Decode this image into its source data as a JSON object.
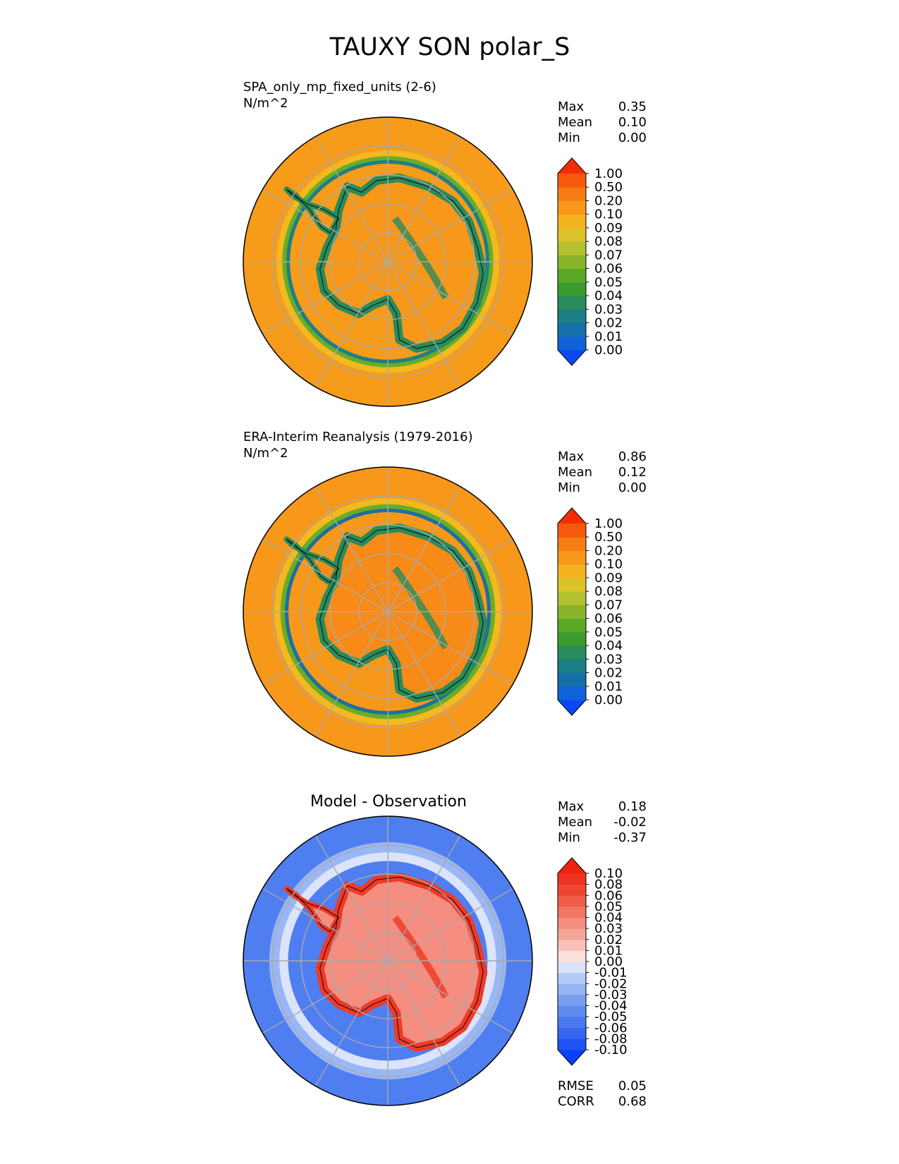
{
  "figure_title": "TAUXY SON polar_S",
  "chart_data": [
    {
      "type": "heatmap",
      "projection": "south-polar-stereographic",
      "title": "SPA_only_mp_fixed_units (2-6)",
      "units": "N/m^2",
      "stats": [
        {
          "label": "Max",
          "value": "0.35"
        },
        {
          "label": "Mean",
          "value": "0.10"
        },
        {
          "label": "Min",
          "value": "0.00"
        }
      ],
      "colorbar": {
        "levels": [
          "0.00",
          "0.01",
          "0.02",
          "0.03",
          "0.04",
          "0.05",
          "0.06",
          "0.07",
          "0.08",
          "0.09",
          "0.10",
          "0.20",
          "0.50",
          "1.00"
        ],
        "colors": [
          "#0a48f5",
          "#0f62d8",
          "#166fa8",
          "#1c7f86",
          "#2a8b5c",
          "#3b9b2e",
          "#5ba726",
          "#88b52a",
          "#b3c030",
          "#dcc32a",
          "#f5b31f",
          "#f7981a",
          "#f67d14",
          "#f55a0c",
          "#f42d04"
        ],
        "extend": "both"
      },
      "field": {
        "background": "#f79b1b",
        "rings": [
          {
            "r": 0.73,
            "color": "#f3b920",
            "w": 0.08
          },
          {
            "r": 0.71,
            "color": "#6aac27",
            "w": 0.04
          },
          {
            "r": 0.69,
            "color": "#1c7f86",
            "w": 0.025
          }
        ],
        "continent": "#f7981a",
        "continent_edge": "#2a8b5c"
      }
    },
    {
      "type": "heatmap",
      "projection": "south-polar-stereographic",
      "title": "ERA-Interim Reanalysis (1979-2016)",
      "units": "N/m^2",
      "stats": [
        {
          "label": "Max",
          "value": "0.86"
        },
        {
          "label": "Mean",
          "value": "0.12"
        },
        {
          "label": "Min",
          "value": "0.00"
        }
      ],
      "colorbar": {
        "levels": [
          "0.00",
          "0.01",
          "0.02",
          "0.03",
          "0.04",
          "0.05",
          "0.06",
          "0.07",
          "0.08",
          "0.09",
          "0.10",
          "0.20",
          "0.50",
          "1.00"
        ],
        "colors": [
          "#0a48f5",
          "#0f62d8",
          "#166fa8",
          "#1c7f86",
          "#2a8b5c",
          "#3b9b2e",
          "#5ba726",
          "#88b52a",
          "#b3c030",
          "#dcc32a",
          "#f5b31f",
          "#f7981a",
          "#f67d14",
          "#f55a0c",
          "#f42d04"
        ],
        "extend": "both"
      },
      "field": {
        "background": "#f7981a",
        "rings": [
          {
            "r": 0.75,
            "color": "#f3b920",
            "w": 0.07
          },
          {
            "r": 0.72,
            "color": "#6aac27",
            "w": 0.045
          },
          {
            "r": 0.7,
            "color": "#1c6fa0",
            "w": 0.025
          }
        ],
        "continent": "#f88a17",
        "continent_edge": "#2a8b5c"
      }
    },
    {
      "type": "heatmap",
      "projection": "south-polar-stereographic",
      "title": "Model - Observation",
      "units": "",
      "stats": [
        {
          "label": "Max",
          "value": "0.18"
        },
        {
          "label": "Mean",
          "value": "-0.02"
        },
        {
          "label": "Min",
          "value": "-0.37"
        }
      ],
      "metrics": [
        {
          "label": "RMSE",
          "value": "0.05"
        },
        {
          "label": "CORR",
          "value": "0.68"
        }
      ],
      "colorbar": {
        "levels": [
          "-0.10",
          "-0.08",
          "-0.06",
          "-0.05",
          "-0.04",
          "-0.03",
          "-0.02",
          "-0.01",
          "0.00",
          "0.01",
          "0.02",
          "0.03",
          "0.04",
          "0.05",
          "0.06",
          "0.08",
          "0.10"
        ],
        "colors": [
          "#0a40f8",
          "#1f52f5",
          "#3566f2",
          "#4a78ef",
          "#5f8bee",
          "#7a9ff1",
          "#97b4f4",
          "#b5cbf7",
          "#dbe4fb",
          "#fbe0dc",
          "#f8c2ba",
          "#f5a698",
          "#f38d7e",
          "#f17663",
          "#ef5e4a",
          "#ee4632",
          "#ee3322",
          "#ee2410"
        ],
        "extend": "both"
      },
      "field": {
        "background": "#4f7ef0",
        "rings": [
          {
            "r": 0.78,
            "color": "#9ab7f5",
            "w": 0.08
          },
          {
            "r": 0.72,
            "color": "#dbe4fb",
            "w": 0.06
          }
        ],
        "continent": "#f58e80",
        "continent_edge": "#ee3a26"
      }
    }
  ]
}
